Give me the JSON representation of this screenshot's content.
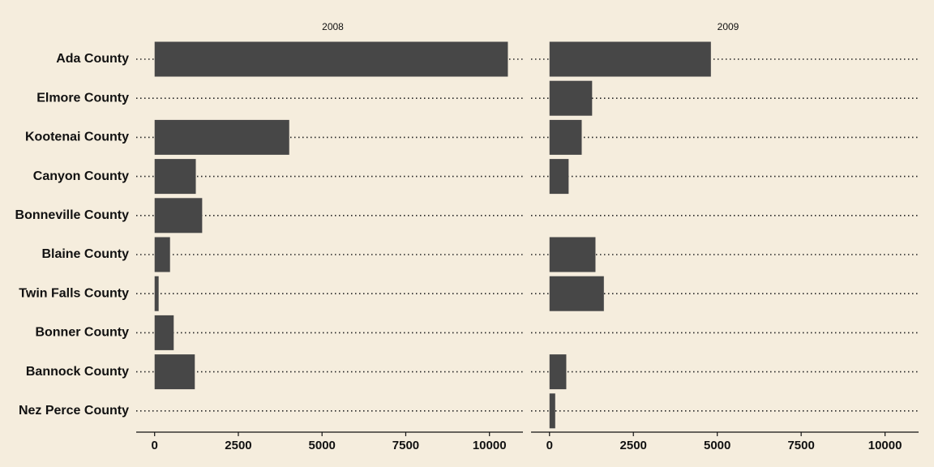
{
  "chart_data": {
    "type": "bar",
    "orientation": "horizontal",
    "facets": [
      "2008",
      "2009"
    ],
    "categories": [
      "Ada County",
      "Elmore County",
      "Kootenai County",
      "Canyon County",
      "Bonneville County",
      "Blaine County",
      "Twin Falls County",
      "Bonner County",
      "Bannock County",
      "Nez Perce County"
    ],
    "series": [
      {
        "facet": "2008",
        "values": [
          10550,
          null,
          4020,
          1230,
          1420,
          460,
          120,
          570,
          1200,
          null
        ]
      },
      {
        "facet": "2009",
        "values": [
          4810,
          1270,
          960,
          570,
          null,
          1370,
          1620,
          null,
          500,
          170
        ]
      }
    ],
    "xticks": [
      0,
      2500,
      5000,
      7500,
      10000
    ],
    "xtick_labels": [
      "0",
      "2500",
      "5000",
      "7500",
      "10000"
    ],
    "xlim": [
      -550,
      11000
    ],
    "title": "",
    "xlabel": "",
    "ylabel": "",
    "grid": "dotted horizontal guides",
    "bar_color": "#474747",
    "background_color": "#f5eddd"
  }
}
